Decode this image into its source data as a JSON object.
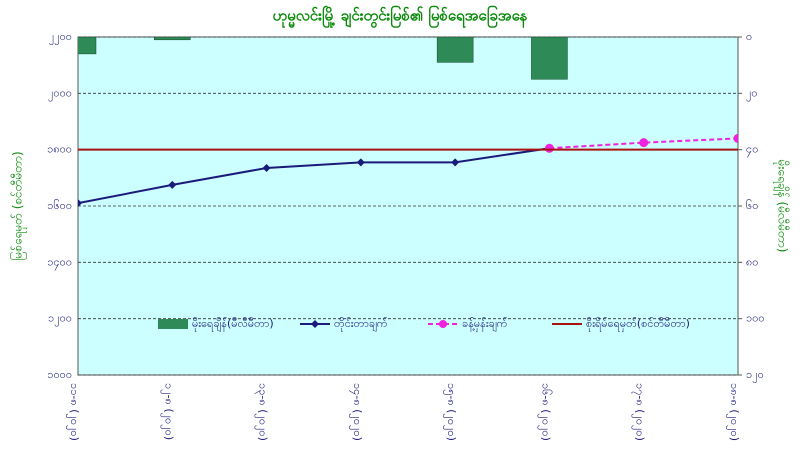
{
  "chart_data": {
    "type": "combo",
    "title": "ဟုမ္မလင်းမြို့ ချင်းတွင်းမြစ်၏ မြစ်ရေအခြေအနေ",
    "y_label": "မြစ်ရေမှတ် (စင်တီမီတာ)",
    "y2_label": "မိုးရေချိန် (မီလီမီတာ)",
    "categories": [
      "၁၁-၈ (၂၀၂၀)",
      "၁၂-၈ (၂၀၂၀)",
      "၁၃-၈ (၂၀၂၀)",
      "၁၄-၈ (၂၀၂၀)",
      "၁၅-၈ (၂၀၂၀)",
      "၁၆-၈ (၂၀၂၀)",
      "၁၇-၈ (၂၀၂၀)",
      "၁၈-၈ (၂၀၂၀)"
    ],
    "ylim": [
      1000,
      2200
    ],
    "yticks": [
      {
        "value": 1000,
        "label": "၁၀၀၀"
      },
      {
        "value": 1200,
        "label": "၁၂၀၀"
      },
      {
        "value": 1400,
        "label": "၁၄၀၀"
      },
      {
        "value": 1600,
        "label": "၁၆၀၀"
      },
      {
        "value": 1800,
        "label": "၁၈၀၀"
      },
      {
        "value": 2000,
        "label": "၂၀၀၀"
      },
      {
        "value": 2200,
        "label": "၂၂၀၀"
      }
    ],
    "y2lim": [
      0,
      120
    ],
    "y2_inverted": true,
    "y2ticks": [
      {
        "value": 0,
        "label": "၀"
      },
      {
        "value": 20,
        "label": "၂၀"
      },
      {
        "value": 40,
        "label": "၄၀"
      },
      {
        "value": 60,
        "label": "၆၀"
      },
      {
        "value": 80,
        "label": "၈၀"
      },
      {
        "value": 100,
        "label": "၁၀၀"
      },
      {
        "value": 120,
        "label": "၁၂၀"
      }
    ],
    "grid": true,
    "series": [
      {
        "name": "မိုးရေချိန်(မီလီမီတာ)",
        "kind": "bar",
        "axis": "y2",
        "color": "#2e8b57",
        "values": [
          6,
          1,
          0,
          0,
          9,
          15,
          0,
          0
        ]
      },
      {
        "name": "တိုင်းတာချက်",
        "kind": "line",
        "color": "#1a1a7a",
        "marker": "diamond",
        "values": [
          1610,
          1675,
          1735,
          1755,
          1755,
          1805,
          null,
          null
        ]
      },
      {
        "name": "ခန့်မှန်းချက်",
        "kind": "line",
        "dashed": true,
        "color": "#ee22dd",
        "marker": "circle",
        "values": [
          null,
          null,
          null,
          null,
          null,
          1805,
          1825,
          1840
        ]
      },
      {
        "name": "စိုးရိမ်ရေမှတ်(စင်တီမီတာ)",
        "kind": "line",
        "color": "#aa1111",
        "values": [
          1800,
          1800,
          1800,
          1800,
          1800,
          1800,
          1800,
          1800
        ]
      }
    ]
  }
}
